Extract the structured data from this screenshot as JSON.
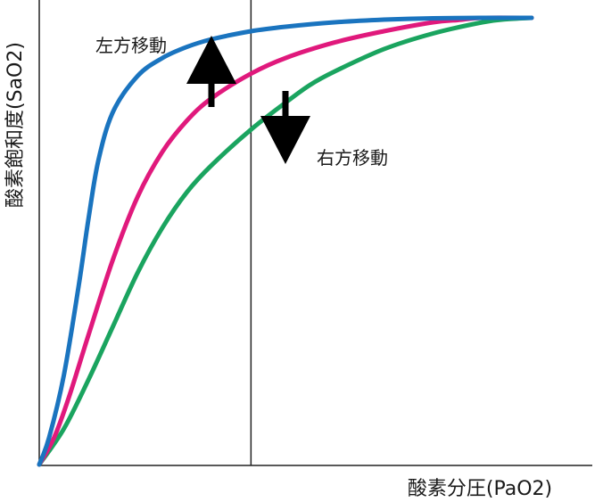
{
  "chart_data": {
    "type": "line",
    "xlabel": "酸素分圧(PaO2)",
    "ylabel": "酸素飽和度(SaO2)",
    "xlim": [
      0,
      1
    ],
    "ylim": [
      0,
      1
    ],
    "grid": false,
    "reference_x": 0.43,
    "series": [
      {
        "color": "#1a74bf",
        "x": [
          0,
          0.02,
          0.05,
          0.08,
          0.1,
          0.12,
          0.15,
          0.2,
          0.25,
          0.3,
          0.35,
          0.43,
          0.5,
          0.6,
          0.7,
          0.8,
          0.9,
          1.0
        ],
        "y": [
          0,
          0.06,
          0.2,
          0.4,
          0.55,
          0.68,
          0.79,
          0.87,
          0.91,
          0.935,
          0.952,
          0.97,
          0.98,
          0.99,
          0.996,
          0.999,
          1.0,
          1.0
        ]
      },
      {
        "color": "#e0197c",
        "x": [
          0,
          0.03,
          0.06,
          0.1,
          0.15,
          0.2,
          0.25,
          0.3,
          0.35,
          0.43,
          0.5,
          0.6,
          0.7,
          0.8,
          0.85,
          0.9,
          1.0
        ],
        "y": [
          0,
          0.06,
          0.15,
          0.29,
          0.46,
          0.6,
          0.7,
          0.77,
          0.82,
          0.875,
          0.91,
          0.945,
          0.97,
          0.99,
          0.995,
          1.0,
          1.0
        ]
      },
      {
        "color": "#1aa45f",
        "x": [
          0,
          0.05,
          0.1,
          0.15,
          0.2,
          0.25,
          0.3,
          0.35,
          0.43,
          0.5,
          0.55,
          0.6,
          0.7,
          0.8,
          0.9,
          0.95,
          1.0
        ],
        "y": [
          0,
          0.08,
          0.19,
          0.31,
          0.43,
          0.53,
          0.61,
          0.67,
          0.75,
          0.81,
          0.85,
          0.88,
          0.93,
          0.965,
          0.99,
          0.997,
          1.0
        ]
      }
    ],
    "annotations": [
      {
        "text": "左方移動",
        "direction": "up"
      },
      {
        "text": "右方移動",
        "direction": "down"
      }
    ]
  }
}
